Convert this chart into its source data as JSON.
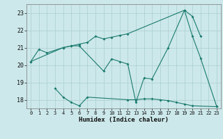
{
  "xlabel": "Humidex (Indice chaleur)",
  "bg_color": "#cce8ea",
  "grid_color": "#aacdd0",
  "line_color": "#1a7a6e",
  "ylim": [
    17.5,
    23.5
  ],
  "yticks": [
    18,
    19,
    20,
    21,
    22,
    23
  ],
  "xticks": [
    0,
    1,
    2,
    3,
    4,
    5,
    6,
    7,
    8,
    9,
    10,
    11,
    12,
    13,
    14,
    15,
    16,
    17,
    18,
    19,
    20,
    21,
    22,
    23
  ],
  "main_x": [
    0,
    1,
    2,
    4,
    5,
    6,
    9,
    10,
    11,
    12,
    13,
    14,
    15,
    17,
    19,
    20,
    21,
    23
  ],
  "main_y": [
    20.2,
    20.9,
    20.7,
    21.0,
    21.1,
    21.1,
    19.65,
    20.35,
    20.2,
    20.05,
    17.85,
    19.25,
    19.2,
    21.0,
    23.15,
    21.65,
    20.4,
    17.6
  ],
  "upper_x": [
    0,
    4,
    5,
    6,
    7,
    8,
    9,
    10,
    11,
    12,
    19,
    20,
    21
  ],
  "upper_y": [
    20.2,
    21.0,
    21.1,
    21.2,
    21.3,
    21.65,
    21.5,
    21.6,
    21.7,
    21.8,
    23.15,
    22.8,
    21.65
  ],
  "lower_x": [
    3,
    4,
    5,
    6,
    7,
    12,
    13,
    14,
    15,
    16,
    17,
    18,
    19,
    20,
    23
  ],
  "lower_y": [
    18.65,
    18.15,
    17.85,
    17.65,
    18.15,
    18.0,
    18.0,
    18.05,
    18.05,
    18.0,
    17.95,
    17.85,
    17.75,
    17.65,
    17.6
  ]
}
